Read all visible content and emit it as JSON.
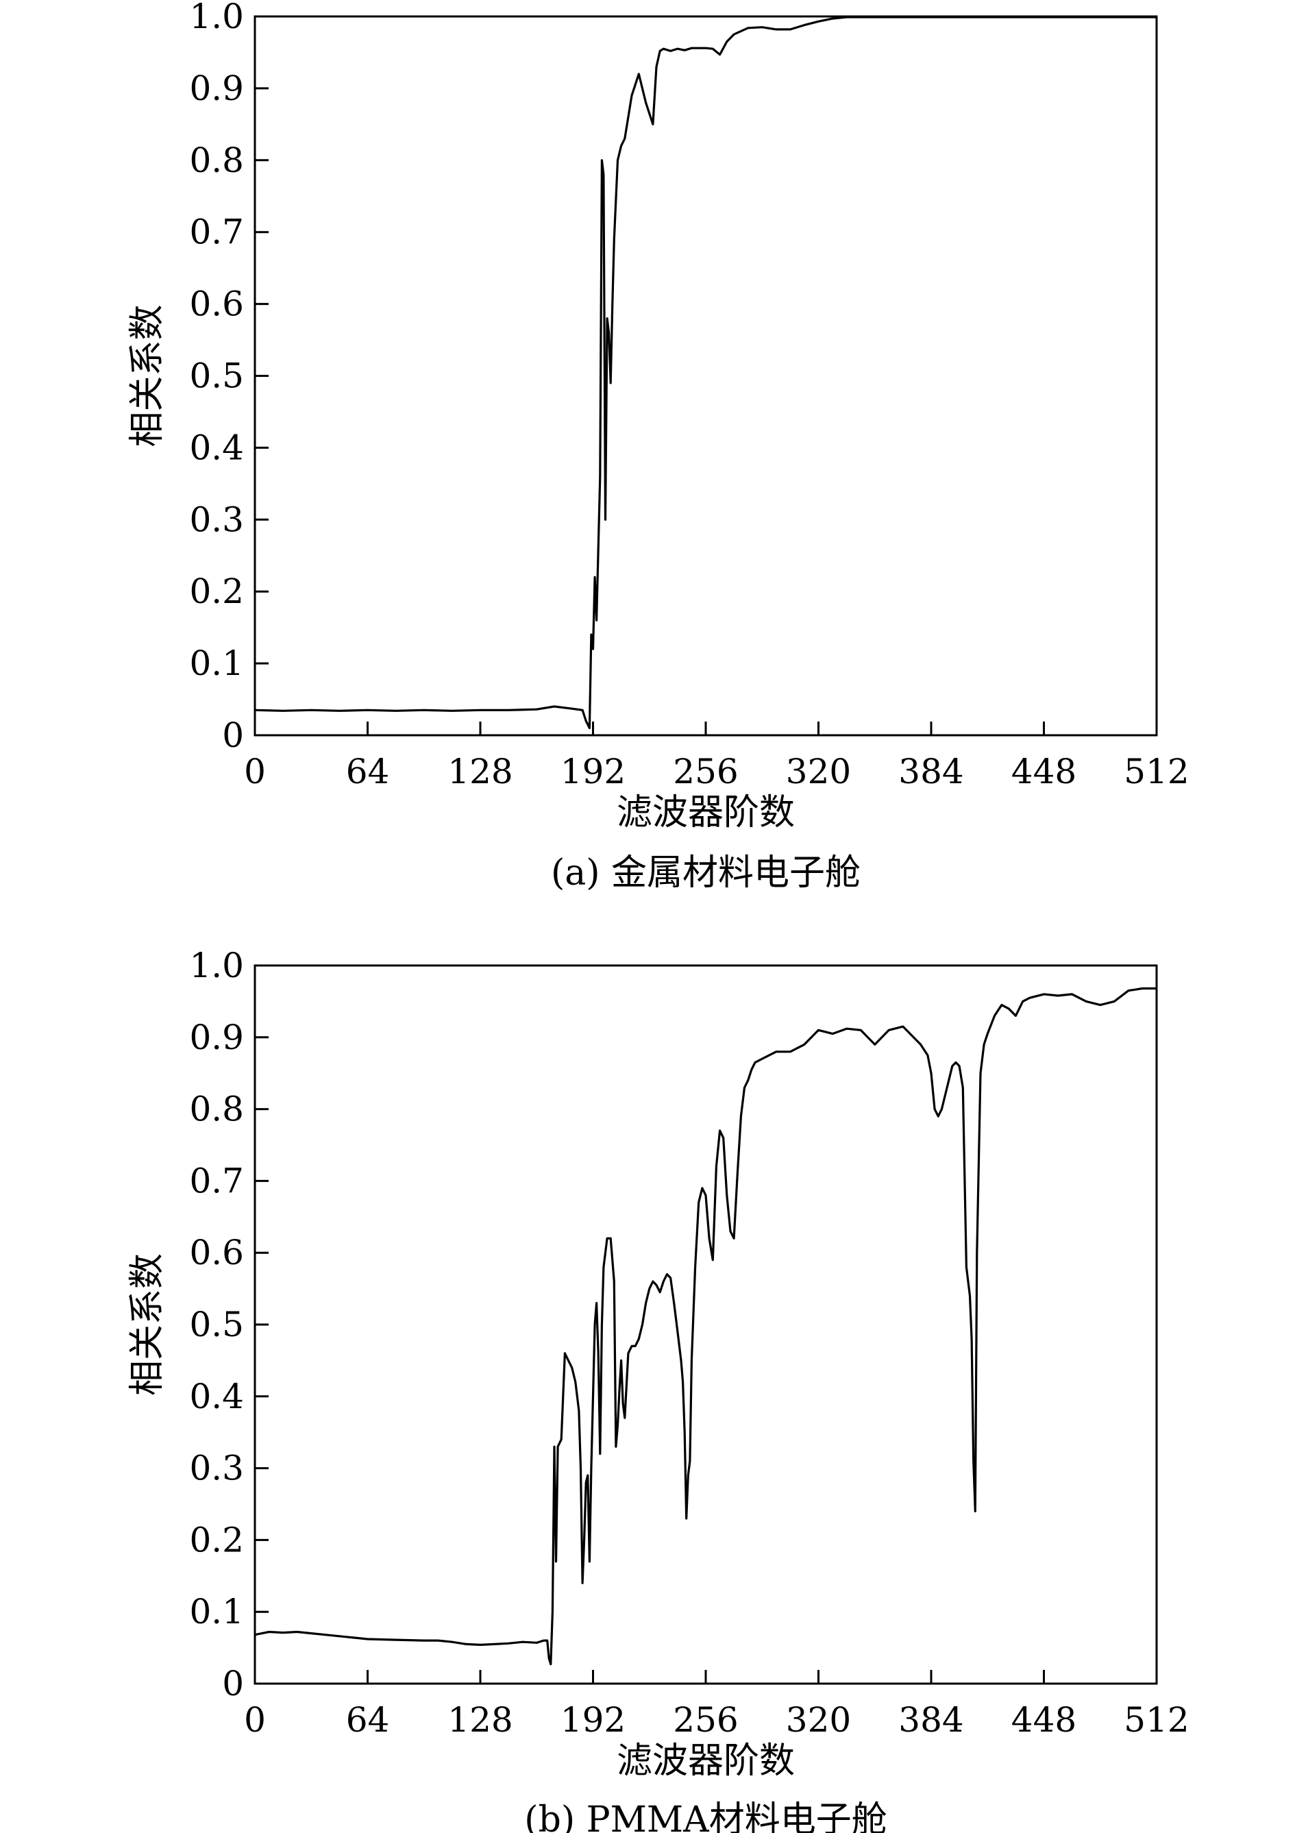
{
  "chart_data": [
    {
      "type": "line",
      "caption": "(a) 金属材料电子舱",
      "xlabel": "滤波器阶数",
      "ylabel": "相关系数",
      "xlim": [
        0,
        512
      ],
      "ylim": [
        0,
        1.0
      ],
      "xticks": [
        0,
        64,
        128,
        192,
        256,
        320,
        384,
        448,
        512
      ],
      "xtick_labels": [
        "0",
        "64",
        "128",
        "192",
        "256",
        "320",
        "384",
        "448",
        "512"
      ],
      "yticks": [
        0,
        0.1,
        0.2,
        0.3,
        0.4,
        0.5,
        0.6,
        0.7,
        0.8,
        0.9,
        1.0
      ],
      "ytick_labels": [
        "0",
        "0.1",
        "0.2",
        "0.3",
        "0.4",
        "0.5",
        "0.6",
        "0.7",
        "0.8",
        "0.9",
        "1.0"
      ],
      "grid": false,
      "series": [
        {
          "color": "#000000",
          "x": [
            0,
            16,
            32,
            48,
            64,
            80,
            96,
            112,
            128,
            144,
            160,
            170,
            180,
            186,
            188,
            190,
            191,
            192,
            193,
            194,
            195,
            196,
            197,
            198,
            199,
            200,
            201,
            202,
            203,
            204,
            206,
            208,
            210,
            212,
            214,
            218,
            222,
            226,
            228,
            230,
            232,
            236,
            240,
            244,
            248,
            252,
            256,
            260,
            264,
            268,
            272,
            280,
            288,
            296,
            304,
            312,
            320,
            328,
            336,
            352,
            368,
            384,
            400,
            416,
            432,
            448,
            464,
            480,
            496,
            512
          ],
          "y": [
            0.035,
            0.034,
            0.035,
            0.034,
            0.035,
            0.034,
            0.035,
            0.034,
            0.035,
            0.035,
            0.036,
            0.04,
            0.037,
            0.035,
            0.02,
            0.01,
            0.14,
            0.12,
            0.22,
            0.16,
            0.26,
            0.36,
            0.8,
            0.78,
            0.3,
            0.58,
            0.56,
            0.49,
            0.6,
            0.69,
            0.8,
            0.82,
            0.83,
            0.86,
            0.89,
            0.92,
            0.88,
            0.85,
            0.93,
            0.952,
            0.955,
            0.952,
            0.955,
            0.953,
            0.956,
            0.956,
            0.956,
            0.955,
            0.947,
            0.965,
            0.975,
            0.984,
            0.985,
            0.982,
            0.982,
            0.988,
            0.993,
            0.997,
            0.999,
            0.999,
            0.999,
            0.999,
            0.999,
            0.999,
            0.999,
            0.999,
            0.999,
            0.999,
            0.999,
            0.999
          ]
        }
      ]
    },
    {
      "type": "line",
      "caption": "(b) PMMA材料电子舱",
      "xlabel": "滤波器阶数",
      "ylabel": "相关系数",
      "xlim": [
        0,
        512
      ],
      "ylim": [
        0,
        1.0
      ],
      "xticks": [
        0,
        64,
        128,
        192,
        256,
        320,
        384,
        448,
        512
      ],
      "xtick_labels": [
        "0",
        "64",
        "128",
        "192",
        "256",
        "320",
        "384",
        "448",
        "512"
      ],
      "yticks": [
        0,
        0.1,
        0.2,
        0.3,
        0.4,
        0.5,
        0.6,
        0.7,
        0.8,
        0.9,
        1.0
      ],
      "ytick_labels": [
        "0",
        "0.1",
        "0.2",
        "0.3",
        "0.4",
        "0.5",
        "0.6",
        "0.7",
        "0.8",
        "0.9",
        "1.0"
      ],
      "grid": false,
      "series": [
        {
          "color": "#000000",
          "x": [
            0,
            8,
            16,
            24,
            32,
            40,
            48,
            56,
            64,
            80,
            96,
            104,
            112,
            120,
            128,
            136,
            144,
            152,
            160,
            164,
            166,
            167,
            168,
            169,
            170,
            171,
            172,
            174,
            176,
            178,
            180,
            182,
            184,
            185,
            186,
            187,
            188,
            189,
            190,
            191,
            193,
            194,
            195,
            196,
            197,
            198,
            200,
            202,
            204,
            205,
            206,
            207,
            208,
            209,
            210,
            212,
            214,
            216,
            218,
            220,
            222,
            224,
            226,
            228,
            230,
            232,
            234,
            236,
            238,
            240,
            242,
            243,
            244,
            245,
            246,
            247,
            248,
            250,
            252,
            254,
            256,
            258,
            260,
            262,
            264,
            266,
            268,
            270,
            272,
            274,
            276,
            278,
            280,
            282,
            284,
            288,
            296,
            304,
            312,
            320,
            328,
            336,
            344,
            352,
            360,
            368,
            374,
            378,
            382,
            384,
            386,
            388,
            390,
            394,
            396,
            398,
            400,
            402,
            404,
            406,
            407,
            408,
            409,
            410,
            412,
            414,
            416,
            420,
            424,
            428,
            432,
            436,
            440,
            448,
            456,
            464,
            472,
            480,
            488,
            496,
            504,
            512
          ],
          "y": [
            0.068,
            0.072,
            0.071,
            0.072,
            0.07,
            0.068,
            0.066,
            0.064,
            0.062,
            0.061,
            0.06,
            0.06,
            0.058,
            0.055,
            0.054,
            0.055,
            0.056,
            0.058,
            0.057,
            0.06,
            0.06,
            0.035,
            0.027,
            0.1,
            0.33,
            0.17,
            0.33,
            0.34,
            0.46,
            0.45,
            0.44,
            0.42,
            0.38,
            0.3,
            0.14,
            0.2,
            0.28,
            0.29,
            0.17,
            0.3,
            0.5,
            0.53,
            0.46,
            0.32,
            0.5,
            0.58,
            0.62,
            0.62,
            0.56,
            0.33,
            0.36,
            0.41,
            0.45,
            0.39,
            0.37,
            0.46,
            0.47,
            0.47,
            0.48,
            0.5,
            0.53,
            0.55,
            0.56,
            0.555,
            0.545,
            0.56,
            0.57,
            0.565,
            0.53,
            0.49,
            0.45,
            0.42,
            0.35,
            0.23,
            0.29,
            0.31,
            0.45,
            0.58,
            0.67,
            0.69,
            0.68,
            0.62,
            0.59,
            0.72,
            0.77,
            0.76,
            0.68,
            0.63,
            0.62,
            0.71,
            0.79,
            0.83,
            0.84,
            0.855,
            0.865,
            0.87,
            0.88,
            0.88,
            0.89,
            0.91,
            0.905,
            0.912,
            0.91,
            0.89,
            0.91,
            0.915,
            0.9,
            0.89,
            0.875,
            0.85,
            0.8,
            0.79,
            0.8,
            0.84,
            0.86,
            0.865,
            0.86,
            0.83,
            0.58,
            0.54,
            0.48,
            0.31,
            0.24,
            0.6,
            0.85,
            0.89,
            0.905,
            0.93,
            0.945,
            0.94,
            0.93,
            0.95,
            0.955,
            0.96,
            0.958,
            0.96,
            0.95,
            0.945,
            0.95,
            0.965,
            0.968,
            0.968
          ]
        }
      ]
    }
  ]
}
